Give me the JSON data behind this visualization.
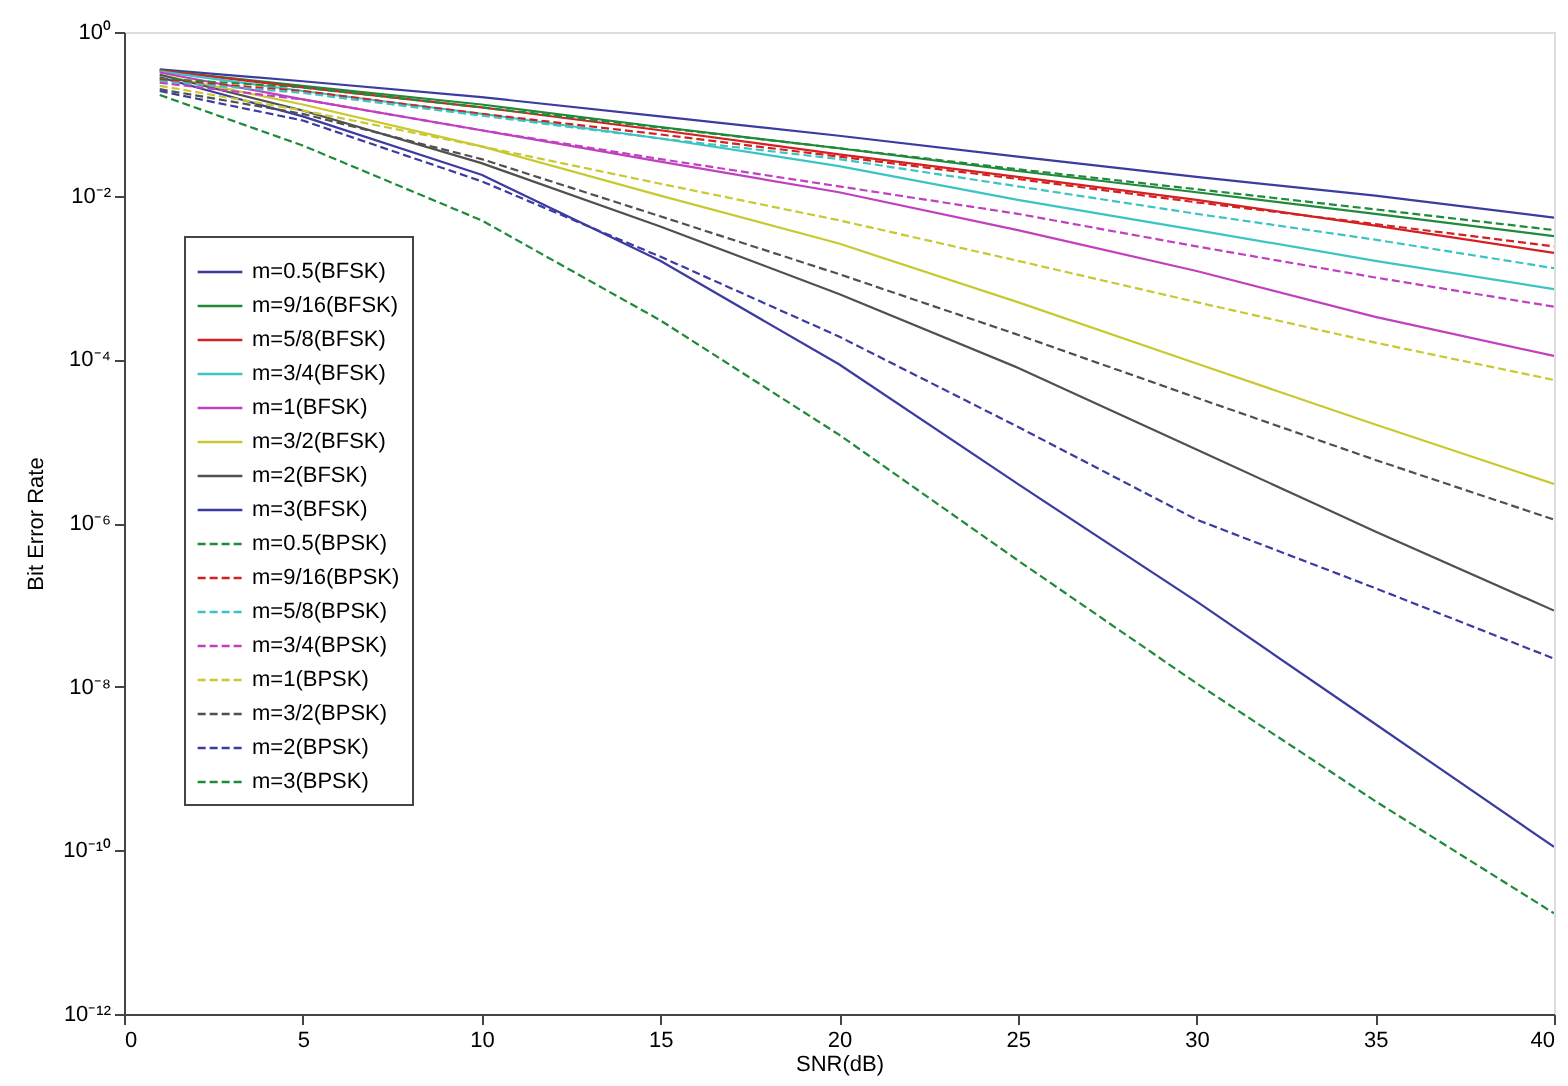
{
  "chart_data": {
    "type": "line",
    "xlabel": "SNR(dB)",
    "ylabel": "Bit Error Rate",
    "log": "y",
    "xlim": [
      0,
      40
    ],
    "xticks": [
      0,
      5,
      10,
      15,
      20,
      25,
      30,
      35,
      40
    ],
    "ylim": [
      1e-12,
      1
    ],
    "yticks": [
      {
        "value": 1e-12,
        "label": "10⁻¹²"
      },
      {
        "value": 1e-10,
        "label": "10⁻¹⁰"
      },
      {
        "value": 1e-08,
        "label": "10⁻⁸"
      },
      {
        "value": 1e-06,
        "label": "10⁻⁶"
      },
      {
        "value": 0.0001,
        "label": "10⁻⁴"
      },
      {
        "value": 0.01,
        "label": "10⁻²"
      },
      {
        "value": 1,
        "label": "10⁰"
      }
    ],
    "grid": false,
    "legend": "left",
    "marker": "none",
    "x": [
      1,
      5,
      10,
      15,
      20,
      25,
      30,
      35,
      40
    ],
    "series": [
      {
        "name": "m=0.5(BFSK)",
        "color": "#3b3ba0",
        "line_style": "solid",
        "values": [
          0.35,
          0.25,
          0.16,
          0.093,
          0.054,
          0.03,
          0.017,
          0.01,
          0.0054
        ]
      },
      {
        "name": "m=9/16(BFSK)",
        "color": "#1f8a3a",
        "line_style": "solid",
        "values": [
          0.34,
          0.22,
          0.13,
          0.069,
          0.038,
          0.02,
          0.011,
          0.006,
          0.0032
        ]
      },
      {
        "name": "m=5/8(BFSK)",
        "color": "#d42020",
        "line_style": "solid",
        "values": [
          0.34,
          0.21,
          0.12,
          0.063,
          0.032,
          0.017,
          0.0089,
          0.0043,
          0.002
        ]
      },
      {
        "name": "m=3/4(BFSK)",
        "color": "#3cc4c4",
        "line_style": "solid",
        "values": [
          0.33,
          0.19,
          0.1,
          0.05,
          0.023,
          0.0089,
          0.0038,
          0.0016,
          0.00072
        ]
      },
      {
        "name": "m=1(BFSK)",
        "color": "#c040c0",
        "line_style": "solid",
        "values": [
          0.32,
          0.15,
          0.063,
          0.026,
          0.011,
          0.0038,
          0.0012,
          0.00033,
          0.00011
        ]
      },
      {
        "name": "m=3/2(BFSK)",
        "color": "#c8c830",
        "line_style": "solid",
        "values": [
          0.3,
          0.13,
          0.04,
          0.01,
          0.0026,
          0.0005,
          8.9e-05,
          1.6e-05,
          3e-06
        ]
      },
      {
        "name": "m=2(BFSK)",
        "color": "#505050",
        "line_style": "solid",
        "values": [
          0.3,
          0.11,
          0.025,
          0.0042,
          0.00063,
          7.9e-05,
          7.9e-06,
          7.9e-07,
          8.5e-08
        ]
      },
      {
        "name": "m=3(BFSK)",
        "color": "#3b3ba0",
        "line_style": "solid",
        "values": [
          0.28,
          0.093,
          0.018,
          0.0016,
          8.7e-05,
          3e-06,
          1.1e-07,
          3.5e-09,
          1.1e-10
        ]
      },
      {
        "name": "m=0.5(BPSK)",
        "color": "#1f8a3a",
        "line_style": "dashed",
        "values": [
          0.27,
          0.21,
          0.12,
          0.068,
          0.038,
          0.021,
          0.012,
          0.0068,
          0.0038
        ]
      },
      {
        "name": "m=9/16(BPSK)",
        "color": "#d42020",
        "line_style": "dashed",
        "values": [
          0.26,
          0.19,
          0.1,
          0.056,
          0.03,
          0.016,
          0.0083,
          0.0045,
          0.0024
        ]
      },
      {
        "name": "m=5/8(BPSK)",
        "color": "#3cc4c4",
        "line_style": "dashed",
        "values": [
          0.25,
          0.18,
          0.095,
          0.05,
          0.028,
          0.013,
          0.006,
          0.0029,
          0.0013
        ]
      },
      {
        "name": "m=3/4(BPSK)",
        "color": "#c040c0",
        "line_style": "dashed",
        "values": [
          0.24,
          0.15,
          0.063,
          0.028,
          0.013,
          0.006,
          0.0024,
          0.001,
          0.00044
        ]
      },
      {
        "name": "m=1(BPSK)",
        "color": "#c8c830",
        "line_style": "dashed",
        "values": [
          0.22,
          0.11,
          0.04,
          0.014,
          0.005,
          0.0016,
          0.0005,
          0.00016,
          5.6e-05
        ]
      },
      {
        "name": "m=3/2(BPSK)",
        "color": "#505050",
        "line_style": "dashed",
        "values": [
          0.2,
          0.1,
          0.028,
          0.0056,
          0.0011,
          0.0002,
          3.4e-05,
          5.9e-06,
          1.1e-06
        ]
      },
      {
        "name": "m=2(BPSK)",
        "color": "#3b3ba0",
        "line_style": "dashed",
        "values": [
          0.19,
          0.083,
          0.015,
          0.0018,
          0.00019,
          1.5e-05,
          1.1e-06,
          1.6e-07,
          2.2e-08
        ]
      },
      {
        "name": "m=3(BPSK)",
        "color": "#1f8a3a",
        "line_style": "dashed",
        "values": [
          0.17,
          0.041,
          0.005,
          0.0003,
          1.2e-05,
          3.5e-07,
          1.1e-08,
          4e-10,
          1.7e-11
        ]
      }
    ]
  }
}
